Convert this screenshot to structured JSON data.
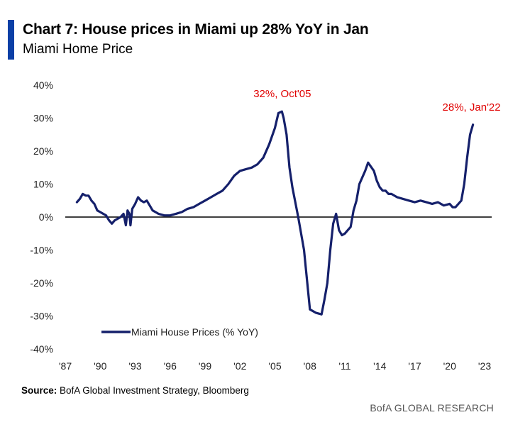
{
  "header": {
    "title": "Chart 7: House prices in Miami up 28% YoY in Jan",
    "subtitle": "Miami Home Price"
  },
  "footer": {
    "source_label": "Source:",
    "source_text": "BofA Global Investment Strategy, Bloomberg",
    "brand": "BofA GLOBAL RESEARCH"
  },
  "colors": {
    "accent": "#0b3fa6",
    "series": "#15206b",
    "annotation": "#e00000"
  },
  "chart_data": {
    "type": "line",
    "title": "Miami Home Price",
    "xlabel": "",
    "ylabel": "",
    "xlim": [
      1987,
      2023
    ],
    "ylim": [
      -40,
      40
    ],
    "x_ticks": [
      {
        "value": 1987,
        "label": "'87"
      },
      {
        "value": 1990,
        "label": "'90"
      },
      {
        "value": 1993,
        "label": "'93"
      },
      {
        "value": 1996,
        "label": "'96"
      },
      {
        "value": 1999,
        "label": "'99"
      },
      {
        "value": 2002,
        "label": "'02"
      },
      {
        "value": 2005,
        "label": "'05"
      },
      {
        "value": 2008,
        "label": "'08"
      },
      {
        "value": 2011,
        "label": "'11"
      },
      {
        "value": 2014,
        "label": "'14"
      },
      {
        "value": 2017,
        "label": "'17"
      },
      {
        "value": 2020,
        "label": "'20"
      },
      {
        "value": 2023,
        "label": "'23"
      }
    ],
    "y_ticks": [
      {
        "value": 40,
        "label": "40%"
      },
      {
        "value": 30,
        "label": "30%"
      },
      {
        "value": 20,
        "label": "20%"
      },
      {
        "value": 10,
        "label": "10%"
      },
      {
        "value": 0,
        "label": "0%"
      },
      {
        "value": -10,
        "label": "-10%"
      },
      {
        "value": -20,
        "label": "-20%"
      },
      {
        "value": -30,
        "label": "-30%"
      },
      {
        "value": -40,
        "label": "-40%"
      }
    ],
    "grid": false,
    "legend": "bottom-left",
    "series": [
      {
        "name": "Miami House Prices (% YoY)",
        "x": [
          1988.0,
          1988.25,
          1988.5,
          1988.75,
          1989.0,
          1989.25,
          1989.5,
          1989.75,
          1990.0,
          1990.25,
          1990.5,
          1990.75,
          1991.0,
          1991.25,
          1991.5,
          1991.75,
          1992.0,
          1992.2,
          1992.35,
          1992.5,
          1992.6,
          1992.75,
          1993.0,
          1993.25,
          1993.5,
          1993.75,
          1994.0,
          1994.25,
          1994.5,
          1994.75,
          1995.0,
          1995.5,
          1996.0,
          1996.5,
          1997.0,
          1997.5,
          1998.0,
          1998.5,
          1999.0,
          1999.5,
          2000.0,
          2000.5,
          2001.0,
          2001.5,
          2002.0,
          2002.5,
          2003.0,
          2003.5,
          2004.0,
          2004.5,
          2005.0,
          2005.3,
          2005.6,
          2005.75,
          2006.0,
          2006.25,
          2006.5,
          2007.0,
          2007.5,
          2008.0,
          2008.5,
          2009.0,
          2009.25,
          2009.5,
          2009.75,
          2010.0,
          2010.25,
          2010.5,
          2010.75,
          2011.0,
          2011.25,
          2011.5,
          2011.75,
          2012.0,
          2012.25,
          2012.5,
          2012.75,
          2013.0,
          2013.5,
          2013.75,
          2014.0,
          2014.25,
          2014.5,
          2014.75,
          2015.0,
          2015.5,
          2016.0,
          2016.5,
          2017.0,
          2017.5,
          2018.0,
          2018.5,
          2019.0,
          2019.5,
          2020.0,
          2020.25,
          2020.5,
          2020.75,
          2021.0,
          2021.25,
          2021.5,
          2021.75,
          2022.0
        ],
        "y": [
          4.5,
          5.5,
          7.0,
          6.5,
          6.5,
          5.0,
          4.0,
          2.0,
          1.5,
          1.0,
          0.5,
          -1.0,
          -2.0,
          -1.0,
          -0.5,
          0.0,
          1.0,
          -2.5,
          2.0,
          1.0,
          -2.5,
          2.5,
          4.0,
          6.0,
          5.0,
          4.5,
          5.0,
          3.5,
          2.0,
          1.5,
          1.0,
          0.5,
          0.5,
          1.0,
          1.5,
          2.5,
          3.0,
          4.0,
          5.0,
          6.0,
          7.0,
          8.0,
          10.0,
          12.5,
          14.0,
          14.5,
          15.0,
          16.0,
          18.0,
          22.0,
          27.0,
          31.5,
          32.0,
          30.0,
          25.0,
          15.0,
          9.0,
          0.0,
          -10.0,
          -28.0,
          -29.0,
          -29.5,
          -25.0,
          -20.0,
          -10.0,
          -2.0,
          1.0,
          -4.0,
          -5.5,
          -5.0,
          -4.0,
          -3.0,
          2.0,
          5.0,
          10.0,
          12.0,
          14.0,
          16.5,
          14.0,
          11.0,
          9.0,
          8.0,
          8.0,
          7.0,
          7.0,
          6.0,
          5.5,
          5.0,
          4.5,
          5.0,
          4.5,
          4.0,
          4.5,
          3.5,
          4.0,
          3.0,
          3.0,
          4.0,
          5.0,
          10.0,
          18.0,
          25.0,
          28.0
        ]
      }
    ],
    "annotations": [
      {
        "text": "32%, Oct'05",
        "x": 2005.75,
        "y": 32
      },
      {
        "text": "28%, Jan'22",
        "x": 2022.0,
        "y": 28
      }
    ]
  }
}
